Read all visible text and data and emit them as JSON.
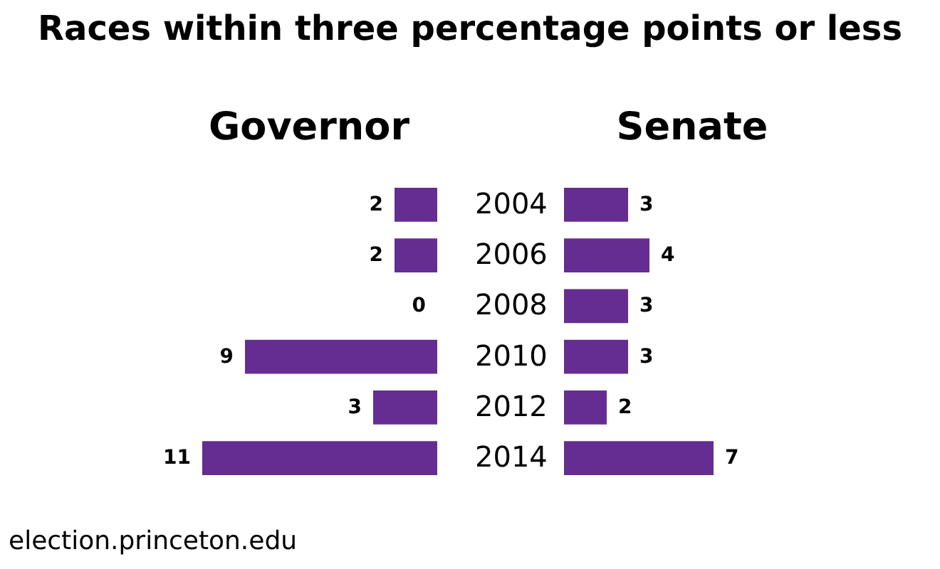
{
  "chart_data": [
    {
      "type": "other",
      "title": "Races within three percentage points or less"
    },
    {
      "type": "bar",
      "title": "Governor",
      "orientation": "horizontal",
      "categories": [
        "2004",
        "2006",
        "2008",
        "2010",
        "2012",
        "2014"
      ],
      "series": [
        {
          "color": "#652d91",
          "values": [
            2,
            2,
            0,
            9,
            3,
            11
          ]
        }
      ],
      "data_labels": true,
      "tick_labels": "y",
      "annotations": [
        "election.princeton.edu"
      ]
    },
    {
      "type": "bar",
      "title": "Senate",
      "orientation": "horizontal",
      "categories": [
        "2004",
        "2006",
        "2008",
        "2010",
        "2012",
        "2014"
      ],
      "series": [
        {
          "color": "#652d91",
          "values": [
            3,
            4,
            3,
            3,
            2,
            7
          ]
        }
      ],
      "data_labels": true,
      "tick_labels": false
    }
  ]
}
